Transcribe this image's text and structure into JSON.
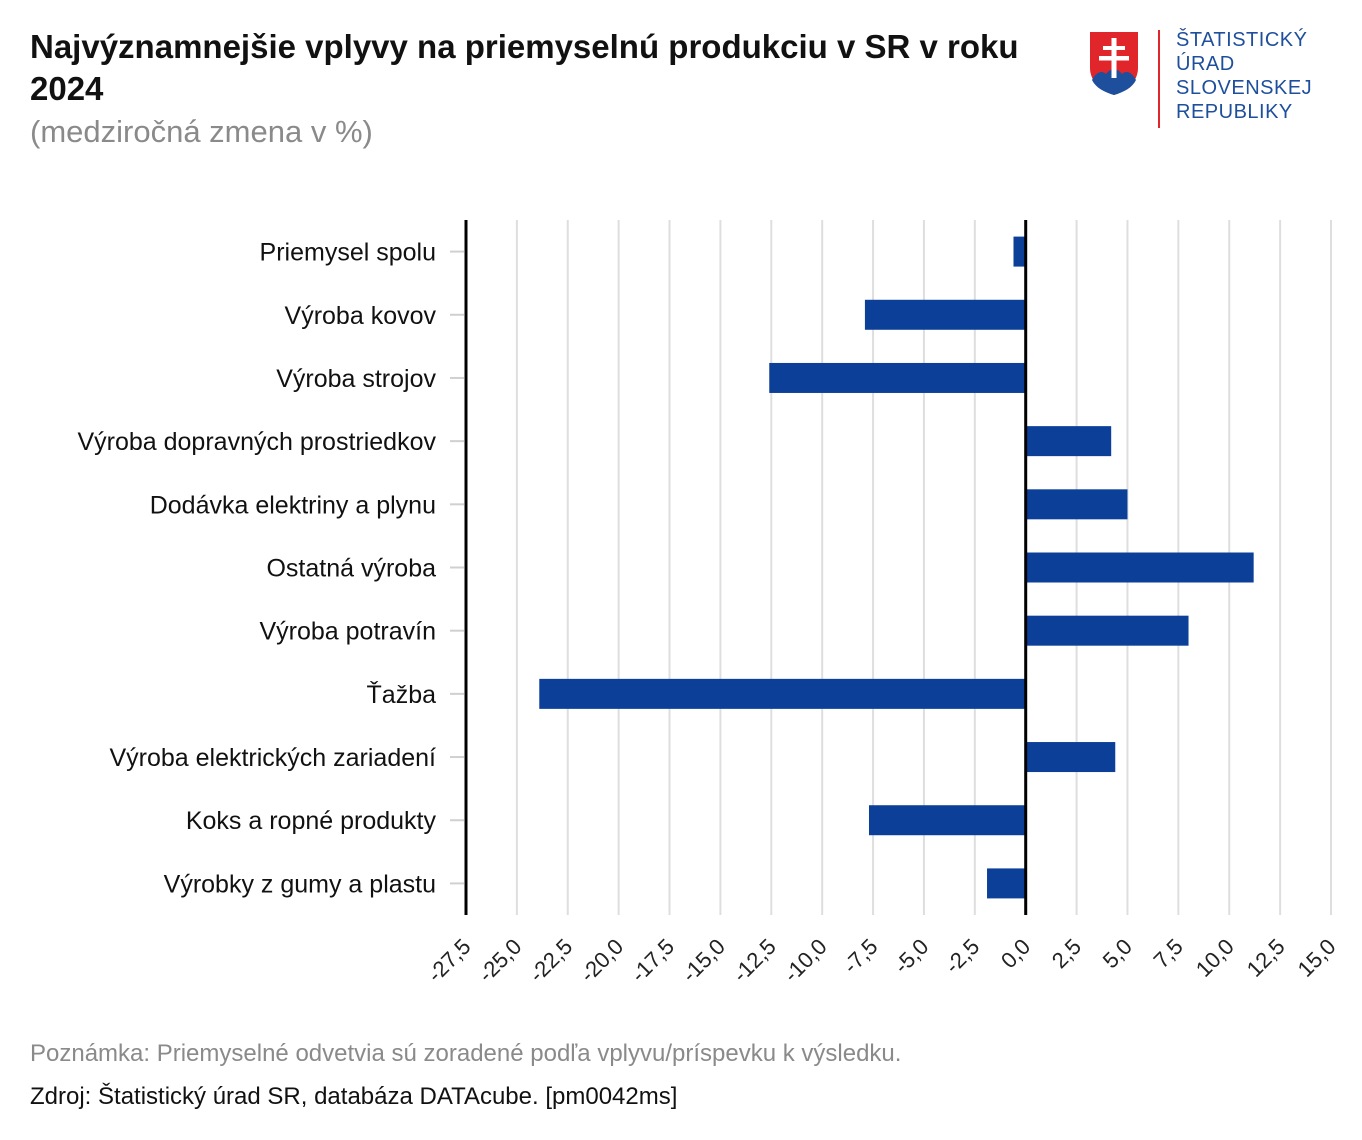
{
  "header": {
    "title": "Najvýznamnejšie vplyvy na priemyselnú produkciu v SR v roku 2024",
    "subtitle": "(medziročná zmena v %)"
  },
  "logo": {
    "lines": [
      "ŠTATISTICKÝ",
      "ÚRAD",
      "SLOVENSKEJ",
      "REPUBLIKY"
    ]
  },
  "footer": {
    "note": "Poznámka: Priemyselné odvetvia sú zoradené podľa vplyvu/príspevku k výsledku.",
    "source": "Zdroj: Štatistický úrad SR, databáza DATAcube. [pm0042ms]"
  },
  "colors": {
    "bar": "#0c3f98",
    "grid": "#dedede",
    "axis": "#000000",
    "logo_blue": "#1e4f9c",
    "logo_red": "#e0262b"
  },
  "chart_data": {
    "type": "bar",
    "orientation": "horizontal",
    "categories": [
      "Priemysel spolu",
      "Výroba kovov",
      "Výroba strojov",
      "Výroba dopravných prostriedkov",
      "Dodávka elektriny a plynu",
      "Ostatná výroba",
      "Výroba potravín",
      "Ťažba",
      "Výroba elektrických zariadení",
      "Koks a ropné produkty",
      "Výrobky z gumy a plastu"
    ],
    "values": [
      -0.6,
      -7.9,
      -12.6,
      4.2,
      5.0,
      11.2,
      8.0,
      -23.9,
      4.4,
      -7.7,
      -1.9
    ],
    "xlim": [
      -27.5,
      15.0
    ],
    "xticks": [
      "-27,5",
      "-25,0",
      "-22,5",
      "-20,0",
      "-17,5",
      "-15,0",
      "-12,5",
      "-10,0",
      "-7,5",
      "-5,0",
      "-2,5",
      "0,0",
      "2,5",
      "5,0",
      "7,5",
      "10,0",
      "12,5",
      "15,0"
    ],
    "grid": true
  }
}
